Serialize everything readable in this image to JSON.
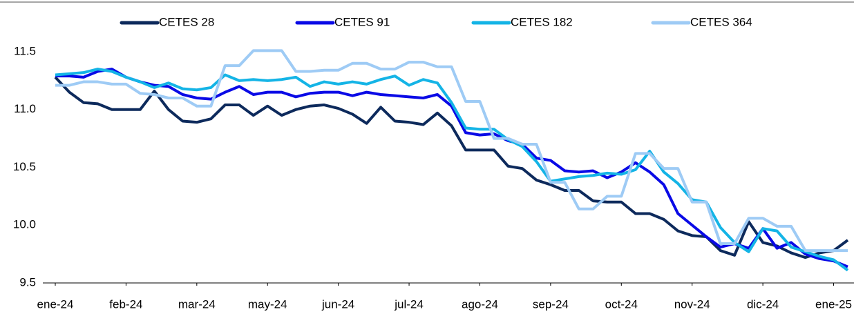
{
  "chart_data": {
    "type": "line",
    "categories": [
      "ene-24",
      null,
      null,
      null,
      null,
      "feb-24",
      null,
      null,
      null,
      null,
      "mar-24",
      null,
      null,
      null,
      null,
      "may-24",
      null,
      null,
      null,
      null,
      "jun-24",
      null,
      null,
      null,
      null,
      "jul-24",
      null,
      null,
      null,
      null,
      "ago-24",
      null,
      null,
      null,
      null,
      "sep-24",
      null,
      null,
      null,
      null,
      "oct-24",
      null,
      null,
      null,
      null,
      "nov-24",
      null,
      null,
      null,
      null,
      "dic-24",
      null,
      null,
      null,
      null,
      "ene-25",
      null
    ],
    "series": [
      {
        "name": "CETES 28",
        "color": "#0d2a5c",
        "values": [
          11.28,
          11.15,
          11.06,
          11.05,
          11.0,
          11.0,
          11.0,
          11.16,
          11.0,
          10.9,
          10.89,
          10.92,
          11.04,
          11.04,
          10.95,
          11.03,
          10.95,
          11.0,
          11.03,
          11.04,
          11.01,
          10.96,
          10.88,
          11.02,
          10.9,
          10.89,
          10.87,
          10.97,
          10.86,
          10.65,
          10.65,
          10.65,
          10.51,
          10.49,
          10.39,
          10.35,
          10.3,
          10.3,
          10.21,
          10.2,
          10.2,
          10.1,
          10.1,
          10.05,
          9.95,
          9.91,
          9.9,
          9.78,
          9.74,
          10.03,
          9.85,
          9.82,
          9.76,
          9.72,
          9.76,
          9.78,
          9.87
        ]
      },
      {
        "name": "CETES 91",
        "color": "#0a0ae6",
        "values": [
          11.29,
          11.29,
          11.28,
          11.33,
          11.35,
          11.28,
          11.24,
          11.21,
          11.2,
          11.13,
          11.1,
          11.09,
          11.15,
          11.2,
          11.13,
          11.15,
          11.15,
          11.11,
          11.14,
          11.15,
          11.15,
          11.12,
          11.15,
          11.13,
          11.12,
          11.11,
          11.1,
          11.13,
          11.03,
          10.8,
          10.78,
          10.79,
          10.73,
          10.7,
          10.58,
          10.56,
          10.47,
          10.46,
          10.47,
          10.41,
          10.46,
          10.54,
          10.46,
          10.35,
          10.1,
          10.0,
          9.9,
          9.81,
          9.84,
          9.8,
          9.97,
          9.8,
          9.85,
          9.75,
          9.71,
          9.69,
          9.64
        ]
      },
      {
        "name": "CETES 182",
        "color": "#14b4e6",
        "values": [
          11.3,
          11.31,
          11.32,
          11.35,
          11.33,
          11.28,
          11.24,
          11.19,
          11.23,
          11.18,
          11.17,
          11.19,
          11.3,
          11.25,
          11.26,
          11.25,
          11.26,
          11.28,
          11.2,
          11.24,
          11.22,
          11.24,
          11.22,
          11.26,
          11.29,
          11.21,
          11.26,
          11.23,
          11.06,
          10.84,
          10.83,
          10.83,
          10.74,
          10.68,
          10.55,
          10.38,
          10.4,
          10.42,
          10.43,
          10.45,
          10.44,
          10.48,
          10.64,
          10.46,
          10.36,
          10.22,
          10.2,
          9.98,
          9.85,
          9.77,
          9.97,
          9.95,
          9.81,
          9.77,
          9.73,
          9.7,
          9.61
        ]
      },
      {
        "name": "CETES 364",
        "color": "#9ecbf5",
        "values": [
          11.21,
          11.21,
          11.24,
          11.24,
          11.22,
          11.22,
          11.14,
          11.13,
          11.1,
          11.1,
          11.03,
          11.03,
          11.38,
          11.38,
          11.51,
          11.51,
          11.51,
          11.33,
          11.33,
          11.34,
          11.34,
          11.4,
          11.4,
          11.35,
          11.35,
          11.41,
          11.41,
          11.37,
          11.37,
          11.07,
          11.07,
          10.75,
          10.75,
          10.7,
          10.7,
          10.37,
          10.37,
          10.14,
          10.14,
          10.25,
          10.25,
          10.62,
          10.62,
          10.49,
          10.49,
          10.2,
          10.2,
          9.84,
          9.84,
          10.06,
          10.06,
          9.99,
          9.99,
          9.78,
          9.78,
          9.78,
          9.78
        ]
      }
    ],
    "ylim": [
      9.5,
      11.5
    ],
    "yticks": [
      9.5,
      {
        "value": 10.0,
        "label": "10.0"
      },
      10.5,
      {
        "value": 11.0,
        "label": "11.0"
      },
      11.5
    ],
    "grid": false,
    "legend": "top"
  }
}
